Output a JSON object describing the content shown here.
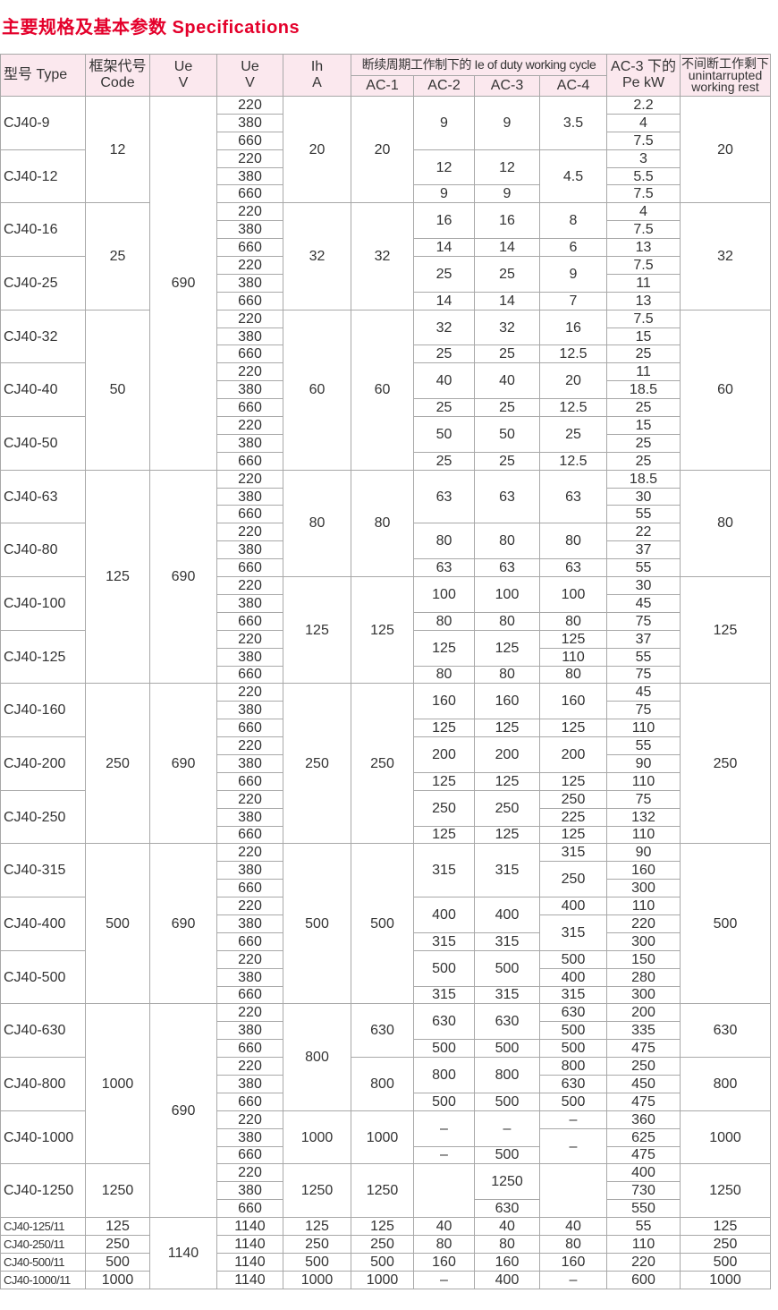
{
  "title": "主要规格及基本参数 Specifications",
  "colors": {
    "title": "#e4002b",
    "header_bg": "#fbe8ee",
    "grid": "#a8a8a8"
  },
  "header": {
    "type": "型号 Type",
    "code": "框架代号 Code",
    "code_cn": "框架代号",
    "code_en": "Code",
    "ue1_top": "Ue",
    "ue1_bottom": "V",
    "ue2_top": "Ue",
    "ue2_bottom": "V",
    "ih_top": "Ih",
    "ih_bottom": "A",
    "duty": "断续周期工作制下的 Ie of duty working cycle",
    "ac1": "AC-1",
    "ac2": "AC-2",
    "ac3": "AC-3",
    "ac4": "AC-4",
    "pe_top": "AC-3 下的",
    "pe_bottom": "Pe kW",
    "rest_cn": "不间断工作剩下",
    "rest_en1": "unintarrupted",
    "rest_en2": "working rest"
  },
  "table": {
    "columns": {
      "type": [
        [
          "CJ40-9",
          3
        ],
        [
          "CJ40-12",
          3
        ],
        [
          "CJ40-16",
          3
        ],
        [
          "CJ40-25",
          3
        ],
        [
          "CJ40-32",
          3
        ],
        [
          "CJ40-40",
          3
        ],
        [
          "CJ40-50",
          3
        ],
        [
          "CJ40-63",
          3
        ],
        [
          "CJ40-80",
          3
        ],
        [
          "CJ40-100",
          3
        ],
        [
          "CJ40-125",
          3
        ],
        [
          "CJ40-160",
          3
        ],
        [
          "CJ40-200",
          3
        ],
        [
          "CJ40-250",
          3
        ],
        [
          "CJ40-315",
          3
        ],
        [
          "CJ40-400",
          3
        ],
        [
          "CJ40-500",
          3
        ],
        [
          "CJ40-630",
          3
        ],
        [
          "CJ40-800",
          3
        ],
        [
          "CJ40-1000",
          3
        ],
        [
          "CJ40-1250",
          3
        ],
        [
          "CJ40-125/11",
          1
        ],
        [
          "CJ40-250/11",
          1
        ],
        [
          "CJ40-500/11",
          1
        ],
        [
          "CJ40-1000/11",
          1
        ]
      ],
      "code": [
        [
          "12",
          6
        ],
        [
          "25",
          6
        ],
        [
          "50",
          9
        ],
        [
          "125",
          12
        ],
        [
          "250",
          9
        ],
        [
          "500",
          9
        ],
        [
          "1000",
          9
        ],
        [
          "1250",
          3
        ],
        [
          "125",
          1
        ],
        [
          "250",
          1
        ],
        [
          "500",
          1
        ],
        [
          "1000",
          1
        ]
      ],
      "ue": [
        [
          "690",
          21
        ],
        [
          "690",
          12
        ],
        [
          "690",
          9
        ],
        [
          "690",
          9
        ],
        [
          "690",
          12
        ],
        [
          "1140",
          4
        ]
      ],
      "uev": [
        [
          "220",
          1
        ],
        [
          "380",
          1
        ],
        [
          "660",
          1
        ],
        [
          "220",
          1
        ],
        [
          "380",
          1
        ],
        [
          "660",
          1
        ],
        [
          "220",
          1
        ],
        [
          "380",
          1
        ],
        [
          "660",
          1
        ],
        [
          "220",
          1
        ],
        [
          "380",
          1
        ],
        [
          "660",
          1
        ],
        [
          "220",
          1
        ],
        [
          "380",
          1
        ],
        [
          "660",
          1
        ],
        [
          "220",
          1
        ],
        [
          "380",
          1
        ],
        [
          "660",
          1
        ],
        [
          "220",
          1
        ],
        [
          "380",
          1
        ],
        [
          "660",
          1
        ],
        [
          "220",
          1
        ],
        [
          "380",
          1
        ],
        [
          "660",
          1
        ],
        [
          "220",
          1
        ],
        [
          "380",
          1
        ],
        [
          "660",
          1
        ],
        [
          "220",
          1
        ],
        [
          "380",
          1
        ],
        [
          "660",
          1
        ],
        [
          "220",
          1
        ],
        [
          "380",
          1
        ],
        [
          "660",
          1
        ],
        [
          "220",
          1
        ],
        [
          "380",
          1
        ],
        [
          "660",
          1
        ],
        [
          "220",
          1
        ],
        [
          "380",
          1
        ],
        [
          "660",
          1
        ],
        [
          "220",
          1
        ],
        [
          "380",
          1
        ],
        [
          "660",
          1
        ],
        [
          "220",
          1
        ],
        [
          "380",
          1
        ],
        [
          "660",
          1
        ],
        [
          "220",
          1
        ],
        [
          "380",
          1
        ],
        [
          "660",
          1
        ],
        [
          "220",
          1
        ],
        [
          "380",
          1
        ],
        [
          "660",
          1
        ],
        [
          "220",
          1
        ],
        [
          "380",
          1
        ],
        [
          "660",
          1
        ],
        [
          "220",
          1
        ],
        [
          "380",
          1
        ],
        [
          "660",
          1
        ],
        [
          "220",
          1
        ],
        [
          "380",
          1
        ],
        [
          "660",
          1
        ],
        [
          "220",
          1
        ],
        [
          "380",
          1
        ],
        [
          "660",
          1
        ],
        [
          "1140",
          1
        ],
        [
          "1140",
          1
        ],
        [
          "1140",
          1
        ],
        [
          "1140",
          1
        ]
      ],
      "ih": [
        [
          "20",
          6
        ],
        [
          "32",
          6
        ],
        [
          "60",
          9
        ],
        [
          "80",
          6
        ],
        [
          "125",
          6
        ],
        [
          "250",
          9
        ],
        [
          "500",
          9
        ],
        [
          "800",
          6
        ],
        [
          "1000",
          3
        ],
        [
          "1250",
          3
        ],
        [
          "125",
          1
        ],
        [
          "250",
          1
        ],
        [
          "500",
          1
        ],
        [
          "1000",
          1
        ]
      ],
      "ac1": [
        [
          "20",
          6
        ],
        [
          "32",
          6
        ],
        [
          "60",
          9
        ],
        [
          "80",
          6
        ],
        [
          "125",
          6
        ],
        [
          "250",
          9
        ],
        [
          "500",
          9
        ],
        [
          "630",
          3
        ],
        [
          "800",
          3
        ],
        [
          "1000",
          3
        ],
        [
          "1250",
          3
        ],
        [
          "125",
          1
        ],
        [
          "250",
          1
        ],
        [
          "500",
          1
        ],
        [
          "1000",
          1
        ]
      ],
      "ac2": [
        [
          "9",
          3
        ],
        [
          "12",
          2
        ],
        [
          "9",
          1
        ],
        [
          "16",
          2
        ],
        [
          "14",
          1
        ],
        [
          "25",
          2
        ],
        [
          "14",
          1
        ],
        [
          "32",
          2
        ],
        [
          "25",
          1
        ],
        [
          "40",
          2
        ],
        [
          "25",
          1
        ],
        [
          "50",
          2
        ],
        [
          "25",
          1
        ],
        [
          "63",
          3
        ],
        [
          "80",
          2
        ],
        [
          "63",
          1
        ],
        [
          "100",
          2
        ],
        [
          "80",
          1
        ],
        [
          "125",
          2
        ],
        [
          "80",
          1
        ],
        [
          "160",
          2
        ],
        [
          "125",
          1
        ],
        [
          "200",
          2
        ],
        [
          "125",
          1
        ],
        [
          "250",
          2
        ],
        [
          "125",
          1
        ],
        [
          "315",
          3
        ],
        [
          "400",
          2
        ],
        [
          "315",
          1
        ],
        [
          "500",
          2
        ],
        [
          "315",
          1
        ],
        [
          "630",
          2
        ],
        [
          "500",
          1
        ],
        [
          "800",
          2
        ],
        [
          "500",
          1
        ],
        [
          "–",
          2
        ],
        [
          "–",
          1
        ],
        [
          "",
          3
        ],
        [
          "40",
          1
        ],
        [
          "80",
          1
        ],
        [
          "160",
          1
        ],
        [
          "–",
          1
        ]
      ],
      "ac3": [
        [
          "9",
          3
        ],
        [
          "12",
          2
        ],
        [
          "9",
          1
        ],
        [
          "16",
          2
        ],
        [
          "14",
          1
        ],
        [
          "25",
          2
        ],
        [
          "14",
          1
        ],
        [
          "32",
          2
        ],
        [
          "25",
          1
        ],
        [
          "40",
          2
        ],
        [
          "25",
          1
        ],
        [
          "50",
          2
        ],
        [
          "25",
          1
        ],
        [
          "63",
          3
        ],
        [
          "80",
          2
        ],
        [
          "63",
          1
        ],
        [
          "100",
          2
        ],
        [
          "80",
          1
        ],
        [
          "125",
          2
        ],
        [
          "80",
          1
        ],
        [
          "160",
          2
        ],
        [
          "125",
          1
        ],
        [
          "200",
          2
        ],
        [
          "125",
          1
        ],
        [
          "250",
          2
        ],
        [
          "125",
          1
        ],
        [
          "315",
          3
        ],
        [
          "400",
          2
        ],
        [
          "315",
          1
        ],
        [
          "500",
          2
        ],
        [
          "315",
          1
        ],
        [
          "630",
          2
        ],
        [
          "500",
          1
        ],
        [
          "800",
          2
        ],
        [
          "500",
          1
        ],
        [
          "–",
          2
        ],
        [
          "500",
          1
        ],
        [
          "1250",
          2
        ],
        [
          "630",
          1
        ],
        [
          "40",
          1
        ],
        [
          "80",
          1
        ],
        [
          "160",
          1
        ],
        [
          "400",
          1
        ]
      ],
      "ac4": [
        [
          "3.5",
          3
        ],
        [
          "4.5",
          3
        ],
        [
          "8",
          2
        ],
        [
          "6",
          1
        ],
        [
          "9",
          2
        ],
        [
          "7",
          1
        ],
        [
          "16",
          2
        ],
        [
          "12.5",
          1
        ],
        [
          "20",
          2
        ],
        [
          "12.5",
          1
        ],
        [
          "25",
          2
        ],
        [
          "12.5",
          1
        ],
        [
          "63",
          3
        ],
        [
          "80",
          2
        ],
        [
          "63",
          1
        ],
        [
          "100",
          2
        ],
        [
          "80",
          1
        ],
        [
          "125",
          1
        ],
        [
          "110",
          1
        ],
        [
          "80",
          1
        ],
        [
          "160",
          2
        ],
        [
          "125",
          1
        ],
        [
          "200",
          2
        ],
        [
          "125",
          1
        ],
        [
          "250",
          1
        ],
        [
          "225",
          1
        ],
        [
          "125",
          1
        ],
        [
          "315",
          1
        ],
        [
          "250",
          2
        ],
        [
          "400",
          1
        ],
        [
          "315",
          2
        ],
        [
          "500",
          1
        ],
        [
          "400",
          1
        ],
        [
          "315",
          1
        ],
        [
          "630",
          1
        ],
        [
          "500",
          1
        ],
        [
          "500",
          1
        ],
        [
          "800",
          1
        ],
        [
          "630",
          1
        ],
        [
          "500",
          1
        ],
        [
          "–",
          1
        ],
        [
          "–",
          2
        ],
        [
          "",
          3
        ],
        [
          "40",
          1
        ],
        [
          "80",
          1
        ],
        [
          "160",
          1
        ],
        [
          "–",
          1
        ]
      ],
      "pe": [
        [
          "2.2",
          1
        ],
        [
          "4",
          1
        ],
        [
          "7.5",
          1
        ],
        [
          "3",
          1
        ],
        [
          "5.5",
          1
        ],
        [
          "7.5",
          1
        ],
        [
          "4",
          1
        ],
        [
          "7.5",
          1
        ],
        [
          "13",
          1
        ],
        [
          "7.5",
          1
        ],
        [
          "11",
          1
        ],
        [
          "13",
          1
        ],
        [
          "7.5",
          1
        ],
        [
          "15",
          1
        ],
        [
          "25",
          1
        ],
        [
          "11",
          1
        ],
        [
          "18.5",
          1
        ],
        [
          "25",
          1
        ],
        [
          "15",
          1
        ],
        [
          "25",
          1
        ],
        [
          "25",
          1
        ],
        [
          "18.5",
          1
        ],
        [
          "30",
          1
        ],
        [
          "55",
          1
        ],
        [
          "22",
          1
        ],
        [
          "37",
          1
        ],
        [
          "55",
          1
        ],
        [
          "30",
          1
        ],
        [
          "45",
          1
        ],
        [
          "75",
          1
        ],
        [
          "37",
          1
        ],
        [
          "55",
          1
        ],
        [
          "75",
          1
        ],
        [
          "45",
          1
        ],
        [
          "75",
          1
        ],
        [
          "110",
          1
        ],
        [
          "55",
          1
        ],
        [
          "90",
          1
        ],
        [
          "110",
          1
        ],
        [
          "75",
          1
        ],
        [
          "132",
          1
        ],
        [
          "110",
          1
        ],
        [
          "90",
          1
        ],
        [
          "160",
          1
        ],
        [
          "300",
          1
        ],
        [
          "110",
          1
        ],
        [
          "220",
          1
        ],
        [
          "300",
          1
        ],
        [
          "150",
          1
        ],
        [
          "280",
          1
        ],
        [
          "300",
          1
        ],
        [
          "200",
          1
        ],
        [
          "335",
          1
        ],
        [
          "475",
          1
        ],
        [
          "250",
          1
        ],
        [
          "450",
          1
        ],
        [
          "475",
          1
        ],
        [
          "360",
          1
        ],
        [
          "625",
          1
        ],
        [
          "475",
          1
        ],
        [
          "400",
          1
        ],
        [
          "730",
          1
        ],
        [
          "550",
          1
        ],
        [
          "55",
          1
        ],
        [
          "110",
          1
        ],
        [
          "220",
          1
        ],
        [
          "600",
          1
        ]
      ],
      "rest": [
        [
          "20",
          6
        ],
        [
          "32",
          6
        ],
        [
          "60",
          9
        ],
        [
          "80",
          6
        ],
        [
          "125",
          6
        ],
        [
          "250",
          9
        ],
        [
          "500",
          9
        ],
        [
          "630",
          3
        ],
        [
          "800",
          3
        ],
        [
          "1000",
          3
        ],
        [
          "1250",
          3
        ],
        [
          "125",
          1
        ],
        [
          "250",
          1
        ],
        [
          "500",
          1
        ],
        [
          "1000",
          1
        ]
      ]
    }
  }
}
